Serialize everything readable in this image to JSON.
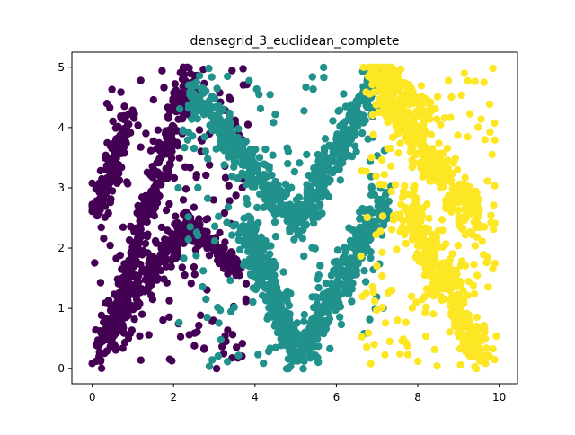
{
  "chart_data": {
    "type": "scatter",
    "title": "densegrid_3_euclidean_complete",
    "xlabel": "",
    "ylabel": "",
    "xlim": [
      -0.5,
      10.45
    ],
    "ylim": [
      -0.25,
      5.25
    ],
    "xticks": [
      0,
      2,
      4,
      6,
      8,
      10
    ],
    "xtick_labels": [
      "0",
      "2",
      "4",
      "6",
      "8",
      "10"
    ],
    "yticks": [
      0,
      1,
      2,
      3,
      4,
      5
    ],
    "ytick_labels": [
      "0",
      "1",
      "2",
      "3",
      "4",
      "5"
    ],
    "grid": false,
    "legend": "none",
    "colors": [
      "#440154",
      "#21918c",
      "#fde725"
    ],
    "series": [
      {
        "color": "#440154",
        "shapes": [
          {
            "kind": "line",
            "from": [
              0.2,
              0.1
            ],
            "to": [
              2.4,
              4.9
            ],
            "n": 330,
            "spread": 0.22
          },
          {
            "kind": "line",
            "from": [
              0.1,
              2.6
            ],
            "to": [
              0.9,
              4.3
            ],
            "n": 140,
            "spread": 0.2
          },
          {
            "kind": "line",
            "from": [
              0.3,
              0.5
            ],
            "to": [
              2.3,
              2.4
            ],
            "n": 200,
            "spread": 0.22
          },
          {
            "kind": "line",
            "from": [
              2.3,
              2.4
            ],
            "to": [
              3.7,
              1.6
            ],
            "n": 120,
            "spread": 0.18
          },
          {
            "kind": "box",
            "x": [
              0,
              3.9
            ],
            "y": [
              0,
              5
            ],
            "n": 160
          }
        ]
      },
      {
        "color": "#21918c",
        "shapes": [
          {
            "kind": "line",
            "from": [
              2.5,
              4.6
            ],
            "to": [
              5.0,
              2.4
            ],
            "n": 300,
            "spread": 0.24
          },
          {
            "kind": "line",
            "from": [
              5.0,
              2.4
            ],
            "to": [
              6.9,
              4.7
            ],
            "n": 300,
            "spread": 0.24
          },
          {
            "kind": "line",
            "from": [
              3.7,
              2.4
            ],
            "to": [
              5.1,
              0.2
            ],
            "n": 300,
            "spread": 0.25
          },
          {
            "kind": "line",
            "from": [
              5.1,
              0.2
            ],
            "to": [
              7.2,
              2.8
            ],
            "n": 300,
            "spread": 0.25
          },
          {
            "kind": "box",
            "x": [
              2.1,
              7.2
            ],
            "y": [
              0,
              5
            ],
            "n": 180
          }
        ]
      },
      {
        "color": "#fde725",
        "shapes": [
          {
            "kind": "line",
            "from": [
              6.9,
              4.8
            ],
            "to": [
              9.6,
              2.3
            ],
            "n": 330,
            "spread": 0.28
          },
          {
            "kind": "line",
            "from": [
              7.7,
              2.8
            ],
            "to": [
              9.6,
              0.2
            ],
            "n": 330,
            "spread": 0.3
          },
          {
            "kind": "line",
            "from": [
              7.0,
              5.0
            ],
            "to": [
              8.3,
              4.2
            ],
            "n": 110,
            "spread": 0.2
          },
          {
            "kind": "box",
            "x": [
              6.6,
              9.9
            ],
            "y": [
              0,
              5
            ],
            "n": 190
          }
        ]
      }
    ]
  }
}
